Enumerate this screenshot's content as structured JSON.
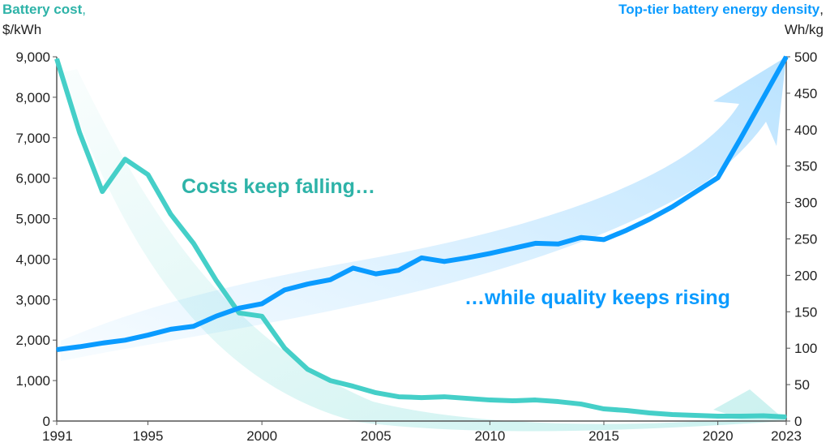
{
  "chart_data": {
    "type": "line",
    "title": "",
    "left_axis": {
      "label_bold": "Battery cost",
      "label_comma": ",",
      "unit": "$/kWh",
      "ylim": [
        0,
        9000
      ],
      "ticks": [
        "0",
        "1,000",
        "2,000",
        "3,000",
        "4,000",
        "5,000",
        "6,000",
        "7,000",
        "8,000",
        "9,000"
      ],
      "tick_values": [
        0,
        1000,
        2000,
        3000,
        4000,
        5000,
        6000,
        7000,
        8000,
        9000
      ]
    },
    "right_axis": {
      "label_bold": "Top-tier battery energy density",
      "label_comma": ",",
      "unit": "Wh/kg",
      "ylim": [
        0,
        500
      ],
      "ticks": [
        "0",
        "50",
        "100",
        "150",
        "200",
        "250",
        "300",
        "350",
        "400",
        "450",
        "500"
      ],
      "tick_values": [
        0,
        50,
        100,
        150,
        200,
        250,
        300,
        350,
        400,
        450,
        500
      ]
    },
    "x_ticks": [
      "1991",
      "1995",
      "2000",
      "2005",
      "2010",
      "2015",
      "2020",
      "2023"
    ],
    "x_tick_values": [
      1991,
      1995,
      2000,
      2005,
      2010,
      2015,
      2020,
      2023
    ],
    "xlim": [
      1991,
      2023
    ],
    "x": [
      1991,
      1992,
      1993,
      1994,
      1995,
      1996,
      1997,
      1998,
      1999,
      2000,
      2001,
      2002,
      2003,
      2004,
      2005,
      2006,
      2007,
      2008,
      2009,
      2010,
      2011,
      2012,
      2013,
      2014,
      2015,
      2016,
      2017,
      2018,
      2019,
      2020,
      2021,
      2022,
      2023
    ],
    "series": [
      {
        "name": "Battery cost",
        "axis": "left",
        "color": "#45CFC8",
        "values": [
          8950,
          7130,
          5670,
          6470,
          6090,
          5110,
          4390,
          3470,
          2670,
          2590,
          1800,
          1280,
          1000,
          860,
          700,
          600,
          580,
          600,
          560,
          520,
          500,
          520,
          480,
          420,
          300,
          260,
          200,
          160,
          140,
          120,
          120,
          130,
          100
        ]
      },
      {
        "name": "Top-tier battery energy density",
        "axis": "right",
        "color": "#0A9BFF",
        "values": [
          98,
          102,
          107,
          111,
          118,
          126,
          130,
          144,
          155,
          161,
          180,
          188,
          194,
          210,
          202,
          207,
          224,
          219,
          224,
          230,
          237,
          244,
          243,
          252,
          249,
          262,
          277,
          294,
          314,
          334,
          388,
          444,
          500
        ]
      }
    ],
    "annotations": [
      "Costs keep falling…",
      "…while quality keeps rising"
    ]
  },
  "colors": {
    "teal_text": "#2EB3A8",
    "blue_text": "#0A9BFF"
  }
}
